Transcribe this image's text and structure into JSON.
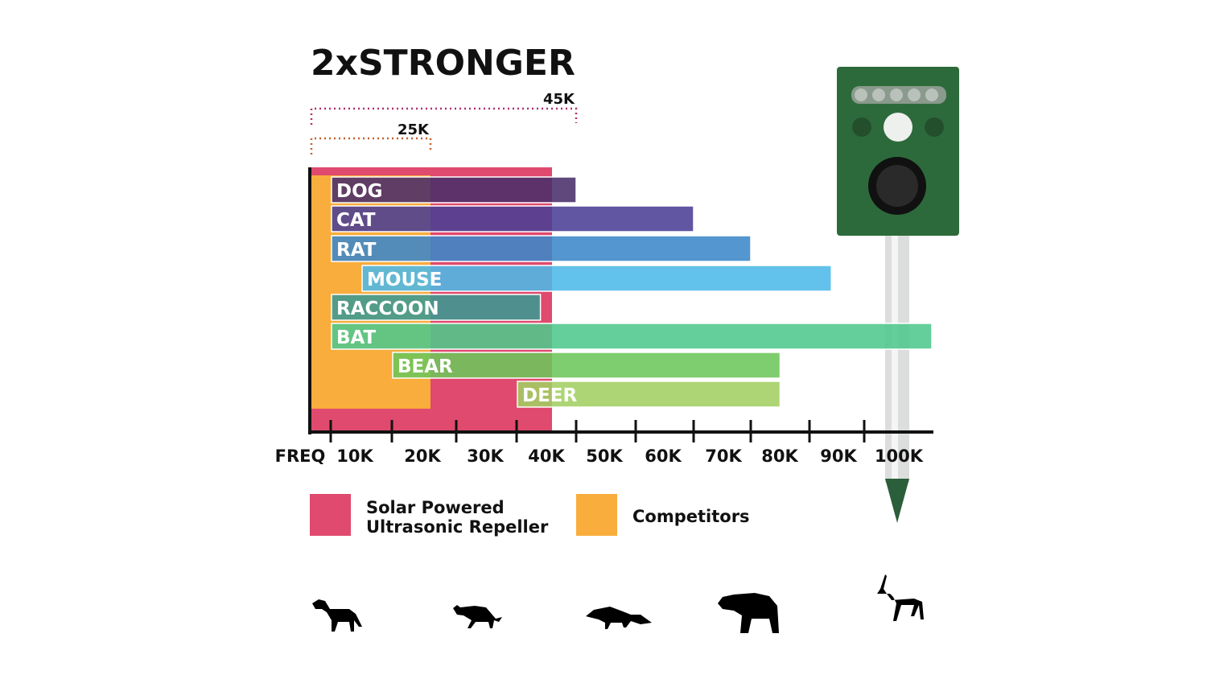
{
  "chart_data": {
    "type": "bar",
    "orientation": "horizontal-range",
    "title": "2xSTRONGER",
    "xlabel": "FREQ",
    "x_ticks": [
      "10K",
      "20K",
      "30K",
      "40K",
      "50K",
      "60K",
      "70K",
      "80K",
      "90K",
      "100K"
    ],
    "x_unit": "kHz",
    "grid": false,
    "brackets": [
      {
        "label": "45K",
        "value": 45,
        "color": "#b0306a"
      },
      {
        "label": "25K",
        "value": 25,
        "color": "#c0602a"
      }
    ],
    "ranges": [
      {
        "name": "Solar Powered Ultrasonic Repeller",
        "start": 0,
        "end": 45,
        "color": "#e04a6e"
      },
      {
        "name": "Competitors",
        "start": 0,
        "end": 25,
        "color": "#f8ad3c"
      }
    ],
    "categories": [
      "DOG",
      "CAT",
      "RAT",
      "MOUSE",
      "RACCOON",
      "BAT",
      "BEAR",
      "DEER"
    ],
    "bars": [
      {
        "label": "DOG",
        "start": 10,
        "end": 50,
        "color": "#4a2e6a"
      },
      {
        "label": "CAT",
        "start": 10,
        "end": 70,
        "color": "#4a3f94"
      },
      {
        "label": "RAT",
        "start": 10,
        "end": 80,
        "color": "#3b87c9"
      },
      {
        "label": "MOUSE",
        "start": 15,
        "end": 94,
        "color": "#4cb9e8"
      },
      {
        "label": "RACCOON",
        "start": 10,
        "end": 44,
        "color": "#3a9a93"
      },
      {
        "label": "BAT",
        "start": 10,
        "end": 112,
        "color": "#4ec88c"
      },
      {
        "label": "BEAR",
        "start": 20,
        "end": 85,
        "color": "#6cc65a"
      },
      {
        "label": "DEER",
        "start": 40,
        "end": 85,
        "color": "#a2cf62"
      }
    ],
    "legend": {
      "placement": "bottom-left",
      "items": [
        {
          "line1": "Solar Powered",
          "line2": "Ultrasonic Repeller",
          "color": "#e04a6e"
        },
        {
          "line1": "Competitors",
          "line2": "",
          "color": "#f8ad3c"
        }
      ]
    }
  },
  "product": {
    "icon": "ultrasonic-repeller-device"
  },
  "animal_icons": [
    "dog-icon",
    "cat-icon",
    "raccoon-icon",
    "bear-icon",
    "deer-icon"
  ]
}
